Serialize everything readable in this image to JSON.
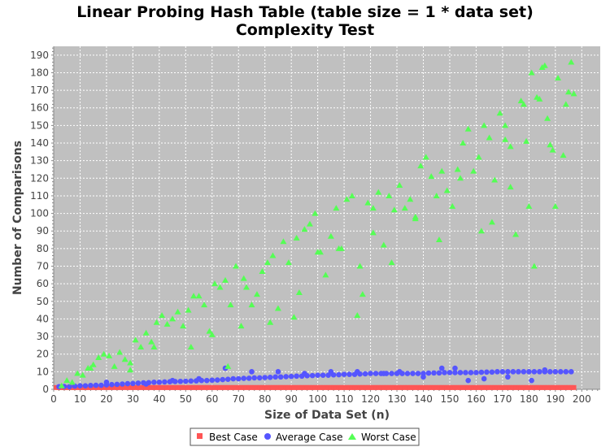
{
  "chart_data": {
    "type": "scatter",
    "title": "Linear Probing Hash Table (table size = 1 * data set)",
    "subtitle": "Complexity Test",
    "xlabel": "Size of Data Set (n)",
    "ylabel": "Number of Comparisons",
    "xlim": [
      0,
      207
    ],
    "ylim": [
      0,
      195
    ],
    "xticks": [
      0,
      10,
      20,
      30,
      40,
      50,
      60,
      70,
      80,
      90,
      100,
      110,
      120,
      130,
      140,
      150,
      160,
      170,
      180,
      190,
      200
    ],
    "yticks": [
      0,
      10,
      20,
      30,
      40,
      50,
      60,
      70,
      80,
      90,
      100,
      110,
      120,
      130,
      140,
      150,
      160,
      170,
      180,
      190
    ],
    "grid": true,
    "plot_background": "#c0c0c0",
    "legend_position": "bottom-center",
    "series": [
      {
        "name": "Best Case",
        "color": "#ff5555",
        "marker": "square",
        "values_note": "y = 1 for every n from 1 to 197",
        "x_range": [
          1,
          197
        ],
        "y_constant": 1
      },
      {
        "name": "Average Case",
        "color": "#5555ff",
        "marker": "circle",
        "points": [
          [
            2,
            1.5
          ],
          [
            4,
            1.6
          ],
          [
            6,
            1.5
          ],
          [
            8,
            1.8
          ],
          [
            10,
            2
          ],
          [
            12,
            2
          ],
          [
            14,
            2.2
          ],
          [
            16,
            2.3
          ],
          [
            18,
            2.3
          ],
          [
            20,
            2.5
          ],
          [
            22,
            2.7
          ],
          [
            24,
            2.8
          ],
          [
            26,
            3
          ],
          [
            28,
            3.2
          ],
          [
            30,
            3.3
          ],
          [
            32,
            3.5
          ],
          [
            34,
            3.7
          ],
          [
            36,
            3.8
          ],
          [
            38,
            4
          ],
          [
            40,
            4
          ],
          [
            42,
            4.2
          ],
          [
            44,
            4.3
          ],
          [
            46,
            4.4
          ],
          [
            48,
            4.5
          ],
          [
            50,
            4.6
          ],
          [
            52,
            4.7
          ],
          [
            54,
            4.8
          ],
          [
            56,
            5
          ],
          [
            58,
            5
          ],
          [
            60,
            5.2
          ],
          [
            62,
            5.3
          ],
          [
            64,
            5.5
          ],
          [
            66,
            5.7
          ],
          [
            68,
            6
          ],
          [
            70,
            6
          ],
          [
            72,
            6.2
          ],
          [
            74,
            6.3
          ],
          [
            76,
            6.5
          ],
          [
            78,
            6.5
          ],
          [
            80,
            6.7
          ],
          [
            82,
            6.8
          ],
          [
            84,
            7
          ],
          [
            86,
            7
          ],
          [
            88,
            7.2
          ],
          [
            90,
            7.3
          ],
          [
            92,
            7.5
          ],
          [
            94,
            7.5
          ],
          [
            96,
            7.7
          ],
          [
            98,
            7.8
          ],
          [
            100,
            8
          ],
          [
            102,
            8
          ],
          [
            104,
            8
          ],
          [
            106,
            8.2
          ],
          [
            108,
            8.3
          ],
          [
            110,
            8.5
          ],
          [
            112,
            8.5
          ],
          [
            114,
            8.5
          ],
          [
            116,
            8.7
          ],
          [
            118,
            8.8
          ],
          [
            120,
            9
          ],
          [
            122,
            9
          ],
          [
            124,
            9
          ],
          [
            126,
            9
          ],
          [
            128,
            9
          ],
          [
            130,
            9
          ],
          [
            132,
            9
          ],
          [
            134,
            9
          ],
          [
            136,
            9
          ],
          [
            138,
            9
          ],
          [
            140,
            9
          ],
          [
            142,
            9.2
          ],
          [
            144,
            9.3
          ],
          [
            146,
            9.3
          ],
          [
            148,
            9.5
          ],
          [
            150,
            9.5
          ],
          [
            152,
            9.5
          ],
          [
            154,
            9.5
          ],
          [
            156,
            9.5
          ],
          [
            158,
            9.5
          ],
          [
            160,
            9.5
          ],
          [
            162,
            9.7
          ],
          [
            164,
            9.8
          ],
          [
            166,
            9.8
          ],
          [
            168,
            10
          ],
          [
            170,
            10
          ],
          [
            172,
            10
          ],
          [
            174,
            10
          ],
          [
            176,
            10
          ],
          [
            178,
            10
          ],
          [
            180,
            10
          ],
          [
            182,
            10
          ],
          [
            184,
            10
          ],
          [
            186,
            10
          ],
          [
            188,
            10
          ],
          [
            190,
            10
          ],
          [
            192,
            10
          ],
          [
            194,
            10
          ],
          [
            196,
            10
          ],
          [
            20,
            4
          ],
          [
            35,
            3
          ],
          [
            45,
            5
          ],
          [
            55,
            6
          ],
          [
            65,
            12
          ],
          [
            75,
            10
          ],
          [
            85,
            10
          ],
          [
            95,
            9
          ],
          [
            105,
            10
          ],
          [
            115,
            10
          ],
          [
            125,
            9
          ],
          [
            131,
            10
          ],
          [
            140,
            7
          ],
          [
            147,
            12
          ],
          [
            152,
            12
          ],
          [
            157,
            5
          ],
          [
            163,
            6
          ],
          [
            172,
            7
          ],
          [
            181,
            5
          ],
          [
            186,
            11
          ]
        ]
      },
      {
        "name": "Worst Case",
        "color": "#55ff55",
        "marker": "triangle",
        "points": [
          [
            3,
            2
          ],
          [
            5,
            5
          ],
          [
            7,
            4
          ],
          [
            9,
            9
          ],
          [
            11,
            8
          ],
          [
            13,
            12
          ],
          [
            15,
            14
          ],
          [
            17,
            18
          ],
          [
            19,
            20
          ],
          [
            21,
            19
          ],
          [
            23,
            13
          ],
          [
            25,
            21
          ],
          [
            27,
            17
          ],
          [
            29,
            15
          ],
          [
            31,
            28
          ],
          [
            33,
            24
          ],
          [
            35,
            32
          ],
          [
            37,
            27
          ],
          [
            39,
            38
          ],
          [
            41,
            42
          ],
          [
            43,
            37
          ],
          [
            45,
            40
          ],
          [
            47,
            44
          ],
          [
            49,
            36
          ],
          [
            51,
            45
          ],
          [
            53,
            53
          ],
          [
            55,
            53
          ],
          [
            57,
            48
          ],
          [
            59,
            33
          ],
          [
            61,
            60
          ],
          [
            63,
            58
          ],
          [
            65,
            62
          ],
          [
            67,
            48
          ],
          [
            69,
            70
          ],
          [
            71,
            36
          ],
          [
            73,
            58
          ],
          [
            75,
            48
          ],
          [
            77,
            54
          ],
          [
            79,
            67
          ],
          [
            81,
            72
          ],
          [
            83,
            76
          ],
          [
            85,
            46
          ],
          [
            87,
            84
          ],
          [
            89,
            72
          ],
          [
            91,
            41
          ],
          [
            93,
            55
          ],
          [
            95,
            91
          ],
          [
            97,
            94
          ],
          [
            99,
            100
          ],
          [
            101,
            78
          ],
          [
            103,
            65
          ],
          [
            105,
            87
          ],
          [
            107,
            103
          ],
          [
            109,
            80
          ],
          [
            111,
            108
          ],
          [
            113,
            110
          ],
          [
            115,
            42
          ],
          [
            117,
            54
          ],
          [
            119,
            106
          ],
          [
            121,
            103
          ],
          [
            123,
            112
          ],
          [
            125,
            82
          ],
          [
            127,
            110
          ],
          [
            129,
            102
          ],
          [
            131,
            116
          ],
          [
            133,
            103
          ],
          [
            135,
            108
          ],
          [
            137,
            97
          ],
          [
            139,
            127
          ],
          [
            141,
            132
          ],
          [
            143,
            121
          ],
          [
            145,
            110
          ],
          [
            147,
            124
          ],
          [
            149,
            113
          ],
          [
            151,
            104
          ],
          [
            153,
            125
          ],
          [
            155,
            140
          ],
          [
            157,
            148
          ],
          [
            159,
            124
          ],
          [
            161,
            132
          ],
          [
            163,
            150
          ],
          [
            165,
            143
          ],
          [
            167,
            119
          ],
          [
            169,
            157
          ],
          [
            171,
            150
          ],
          [
            173,
            138
          ],
          [
            175,
            88
          ],
          [
            177,
            164
          ],
          [
            179,
            141
          ],
          [
            181,
            180
          ],
          [
            183,
            166
          ],
          [
            185,
            183
          ],
          [
            187,
            154
          ],
          [
            189,
            136
          ],
          [
            191,
            177
          ],
          [
            193,
            133
          ],
          [
            195,
            169
          ],
          [
            197,
            168
          ],
          [
            14,
            12
          ],
          [
            29,
            11
          ],
          [
            38,
            24
          ],
          [
            52,
            24
          ],
          [
            60,
            31
          ],
          [
            66,
            13
          ],
          [
            72,
            63
          ],
          [
            82,
            38
          ],
          [
            92,
            86
          ],
          [
            100,
            78
          ],
          [
            108,
            80
          ],
          [
            116,
            70
          ],
          [
            121,
            89
          ],
          [
            128,
            72
          ],
          [
            137,
            98
          ],
          [
            146,
            85
          ],
          [
            154,
            120
          ],
          [
            162,
            90
          ],
          [
            166,
            95
          ],
          [
            171,
            142
          ],
          [
            178,
            162
          ],
          [
            180,
            104
          ],
          [
            182,
            70
          ],
          [
            184,
            165
          ],
          [
            186,
            184
          ],
          [
            188,
            139
          ],
          [
            190,
            104
          ],
          [
            194,
            162
          ],
          [
            196,
            186
          ],
          [
            173,
            115
          ]
        ]
      }
    ]
  }
}
